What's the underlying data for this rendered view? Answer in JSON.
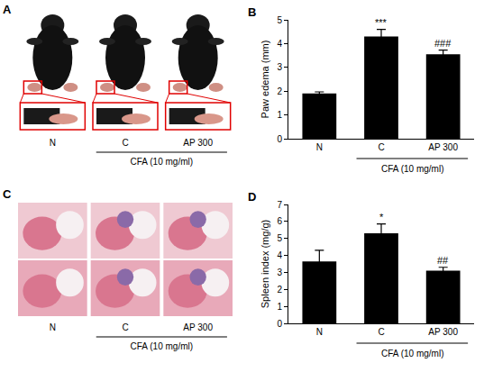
{
  "chart_data": [
    {
      "panel": "B",
      "type": "bar",
      "categories": [
        "N",
        "C",
        "AP 300"
      ],
      "values": [
        1.9,
        4.3,
        3.55
      ],
      "errors": [
        0.07,
        0.3,
        0.18
      ],
      "significance": [
        null,
        "***",
        "###"
      ],
      "group_label": {
        "text": "CFA (10 mg/ml)",
        "categories": [
          "C",
          "AP 300"
        ]
      },
      "y_label": "Paw edema (mm)",
      "ylim": [
        0,
        5
      ],
      "yticks": [
        0,
        1,
        2,
        3,
        4,
        5
      ],
      "color": "#000000",
      "grid": false
    },
    {
      "panel": "D",
      "type": "bar",
      "categories": [
        "N",
        "C",
        "AP 300"
      ],
      "values": [
        3.65,
        5.3,
        3.1
      ],
      "errors": [
        0.65,
        0.55,
        0.2
      ],
      "significance": [
        null,
        "*",
        "##"
      ],
      "group_label": {
        "text": "CFA (10 mg/ml)",
        "categories": [
          "C",
          "AP 300"
        ]
      },
      "y_label": "Spleen index (mg/g)",
      "ylim": [
        0,
        7
      ],
      "yticks": [
        0,
        1,
        2,
        3,
        4,
        5,
        6,
        7
      ],
      "color": "#000000",
      "grid": false
    }
  ],
  "image_panels": [
    {
      "panel": "A",
      "kind": "photo",
      "categories": [
        "N",
        "C",
        "AP 300"
      ],
      "group_label": {
        "text": "CFA (10 mg/ml)",
        "categories": [
          "C",
          "AP 300"
        ]
      }
    },
    {
      "panel": "C",
      "kind": "histology",
      "categories": [
        "N",
        "C",
        "AP 300"
      ],
      "group_label": {
        "text": "CFA (10 mg/ml)",
        "categories": [
          "C",
          "AP 300"
        ]
      }
    }
  ]
}
